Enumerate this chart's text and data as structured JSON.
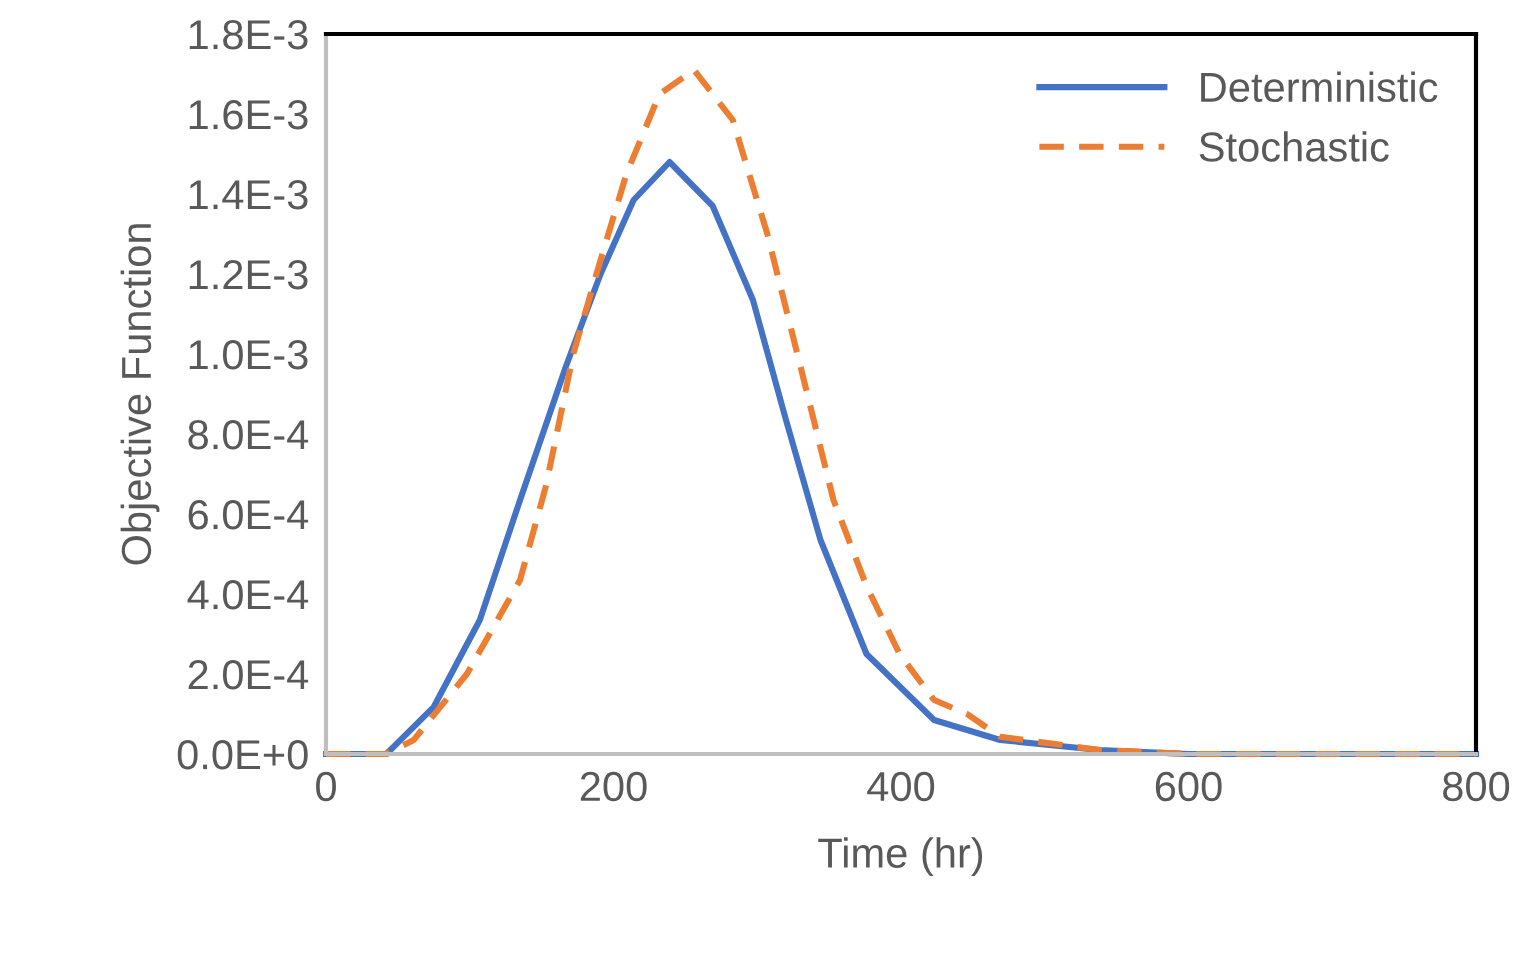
{
  "chart_data": {
    "type": "line",
    "xlabel": "Time (hr)",
    "ylabel": "Objective Function",
    "xlim": [
      0,
      800
    ],
    "xticks": [
      0,
      200,
      400,
      600,
      800
    ],
    "ylim": [
      0,
      0.0018
    ],
    "yticks": [
      {
        "value": 0,
        "label": "0.0E+0"
      },
      {
        "value": 0.0002,
        "label": "2.0E-4"
      },
      {
        "value": 0.0004,
        "label": "4.0E-4"
      },
      {
        "value": 0.0006,
        "label": "6.0E-4"
      },
      {
        "value": 0.0008,
        "label": "8.0E-4"
      },
      {
        "value": 0.001,
        "label": "1.0E-3"
      },
      {
        "value": 0.0012,
        "label": "1.2E-3"
      },
      {
        "value": 0.0014,
        "label": "1.4E-3"
      },
      {
        "value": 0.0016,
        "label": "1.6E-3"
      },
      {
        "value": 0.0018,
        "label": "1.8E-3"
      }
    ],
    "legend": "top right",
    "grid": false,
    "marker": "none",
    "series": [
      {
        "name": "Deterministic",
        "color": "#4472c4",
        "line_style": "solid",
        "x": [
          0,
          42,
          75,
          107,
          135,
          167,
          191,
          214,
          239,
          269,
          297,
          320,
          344,
          376,
          423,
          469,
          538,
          600,
          700,
          800
        ],
        "values": [
          0,
          0,
          0.000118,
          0.000335,
          0.000635,
          0.00097,
          0.0012,
          0.001385,
          0.00148,
          0.00137,
          0.001135,
          0.000835,
          0.000535,
          0.00025,
          8.5e-05,
          3.5e-05,
          1e-05,
          0,
          0,
          0
        ]
      },
      {
        "name": "Stochastic",
        "color": "#ed7d31",
        "line_style": "dashed",
        "x": [
          0,
          42,
          61,
          98,
          135,
          153,
          172,
          191,
          209,
          232,
          256,
          283,
          307,
          330,
          353,
          376,
          399,
          423,
          446,
          469,
          538,
          600,
          700,
          800
        ],
        "values": [
          0,
          0,
          3.5e-05,
          0.0002,
          0.000435,
          0.00067,
          0.001,
          0.001235,
          0.00145,
          0.00165,
          0.00171,
          0.001585,
          0.0013,
          0.00097,
          0.000635,
          0.00042,
          0.00025,
          0.000135,
          0.0001,
          4.3e-05,
          1e-05,
          0,
          0,
          0
        ]
      }
    ]
  }
}
